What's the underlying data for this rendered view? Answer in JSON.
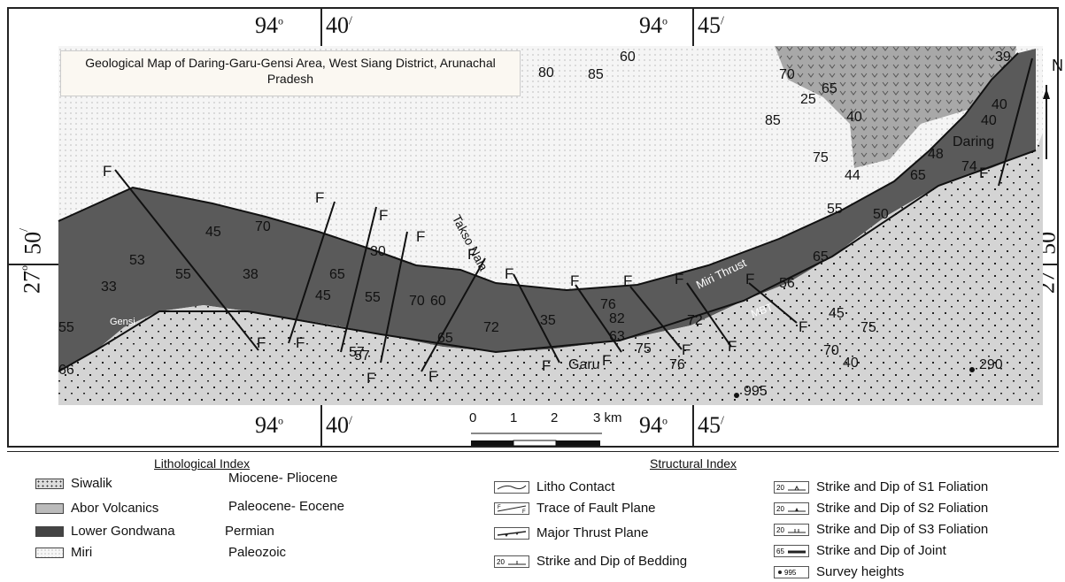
{
  "map": {
    "title": "Geological Map of Daring-Garu-Gensi Area, West Siang District, Arunachal Pradesh",
    "coords": {
      "top_left_deg": "94",
      "top_left_min": "40",
      "top_right_deg": "94",
      "top_right_min": "45",
      "bottom_left_deg": "94",
      "bottom_left_min": "40",
      "bottom_right_deg": "94",
      "bottom_right_min": "45",
      "left_deg": "27",
      "left_min": "50",
      "right_deg": "27",
      "right_min": "50"
    },
    "north": "N",
    "scale": {
      "labels": [
        "0",
        "1",
        "2",
        "3 km"
      ]
    },
    "places": {
      "gensi": "Gensi",
      "garu": "Garu",
      "daring": "Daring",
      "takso_nala": "Takso Nala",
      "miri_thrust": "Miri Thrust",
      "mbt": "MBT"
    },
    "survey_heights": [
      "995",
      "290"
    ],
    "dips": [
      "45",
      "70",
      "53",
      "55",
      "38",
      "33",
      "65",
      "30",
      "45",
      "55",
      "70",
      "60",
      "65",
      "57",
      "72",
      "35",
      "76",
      "82",
      "63",
      "75",
      "72",
      "76",
      "56",
      "45",
      "75",
      "70",
      "40",
      "65",
      "50",
      "55",
      "75",
      "44",
      "65",
      "48",
      "74",
      "40",
      "40",
      "25",
      "85",
      "70",
      "65",
      "40",
      "60",
      "80",
      "85",
      "66",
      "55",
      "57",
      "39"
    ],
    "fault_label": "F",
    "colors": {
      "lower_gondwana": "#5a5a5a",
      "siwalik": "#d4d4d4",
      "miri": "#f5f5f5",
      "abor": "#a8a8a8",
      "line": "#111111"
    }
  },
  "legend": {
    "litho_title": "Lithological Index",
    "struct_title": "Structural Index",
    "litho": [
      {
        "name": "Siwalik",
        "age": "Miocene- Pliocene"
      },
      {
        "name": "Abor Volcanics",
        "age": "Paleocene- Eocene"
      },
      {
        "name": "Lower Gondwana",
        "age": "Permian"
      },
      {
        "name": "Miri",
        "age": "Paleozoic"
      }
    ],
    "struct_left": [
      {
        "label": "Litho Contact",
        "icon": "litho-contact-icon"
      },
      {
        "label": "Trace of Fault Plane",
        "icon": "fault-plane-icon"
      },
      {
        "label": "Major Thrust Plane",
        "icon": "thrust-plane-icon"
      },
      {
        "label": "Strike and Dip of Bedding",
        "icon": "bedding-icon",
        "value": "20"
      }
    ],
    "struct_right": [
      {
        "label": "Strike and Dip of S1 Foliation",
        "icon": "s1-foliation-icon",
        "value": "20"
      },
      {
        "label": "Strike and Dip of S2 Foliation",
        "icon": "s2-foliation-icon",
        "value": "20"
      },
      {
        "label": "Strike and Dip of S3 Foliation",
        "icon": "s3-foliation-icon",
        "value": "20"
      },
      {
        "label": "Strike and Dip of Joint",
        "icon": "joint-icon",
        "value": "65"
      },
      {
        "label": "Survey heights",
        "icon": "survey-height-icon",
        "value": "995"
      }
    ]
  }
}
